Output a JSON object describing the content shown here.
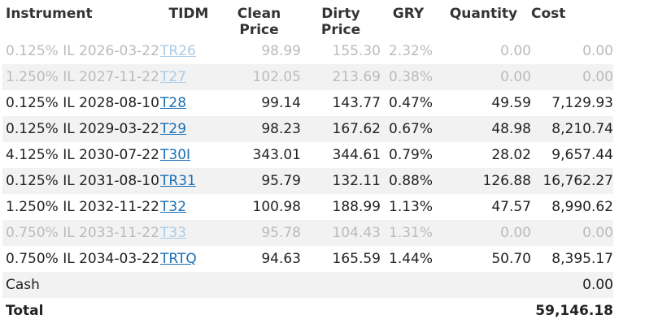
{
  "headers": {
    "instrument": "Instrument",
    "tidm": "TIDM",
    "clean_price": "Clean Price",
    "dirty_price": "Dirty Price",
    "gry": "GRY",
    "quantity": "Quantity",
    "cost": "Cost"
  },
  "rows": [
    {
      "instrument": "0.125% IL 2026-03-22",
      "tidm": "TR26",
      "clean": "98.99",
      "dirty": "155.30",
      "gry": "2.32%",
      "quantity": "0.00",
      "cost": "0.00",
      "faded": true
    },
    {
      "instrument": "1.250% IL 2027-11-22",
      "tidm": "T27",
      "clean": "102.05",
      "dirty": "213.69",
      "gry": "0.38%",
      "quantity": "0.00",
      "cost": "0.00",
      "faded": true
    },
    {
      "instrument": "0.125% IL 2028-08-10",
      "tidm": "T28",
      "clean": "99.14",
      "dirty": "143.77",
      "gry": "0.47%",
      "quantity": "49.59",
      "cost": "7,129.93",
      "faded": false
    },
    {
      "instrument": "0.125% IL 2029-03-22",
      "tidm": "T29",
      "clean": "98.23",
      "dirty": "167.62",
      "gry": "0.67%",
      "quantity": "48.98",
      "cost": "8,210.74",
      "faded": false
    },
    {
      "instrument": "4.125% IL 2030-07-22",
      "tidm": "T30I",
      "clean": "343.01",
      "dirty": "344.61",
      "gry": "0.79%",
      "quantity": "28.02",
      "cost": "9,657.44",
      "faded": false
    },
    {
      "instrument": "0.125% IL 2031-08-10",
      "tidm": "TR31",
      "clean": "95.79",
      "dirty": "132.11",
      "gry": "0.88%",
      "quantity": "126.88",
      "cost": "16,762.27",
      "faded": false
    },
    {
      "instrument": "1.250% IL 2032-11-22",
      "tidm": "T32",
      "clean": "100.98",
      "dirty": "188.99",
      "gry": "1.13%",
      "quantity": "47.57",
      "cost": "8,990.62",
      "faded": false
    },
    {
      "instrument": "0.750% IL 2033-11-22",
      "tidm": "T33",
      "clean": "95.78",
      "dirty": "104.43",
      "gry": "1.31%",
      "quantity": "0.00",
      "cost": "0.00",
      "faded": true
    },
    {
      "instrument": "0.750% IL 2034-03-22",
      "tidm": "TRTQ",
      "clean": "94.63",
      "dirty": "165.59",
      "gry": "1.44%",
      "quantity": "50.70",
      "cost": "8,395.17",
      "faded": false
    }
  ],
  "cash": {
    "label": "Cash",
    "cost": "0.00"
  },
  "total": {
    "label": "Total",
    "cost": "59,146.18"
  },
  "colors": {
    "link": "#1a6fb5",
    "faded_text": "#bbbbbb",
    "faded_link": "#a9cbe6",
    "row_shade": "#f2f2f2"
  }
}
